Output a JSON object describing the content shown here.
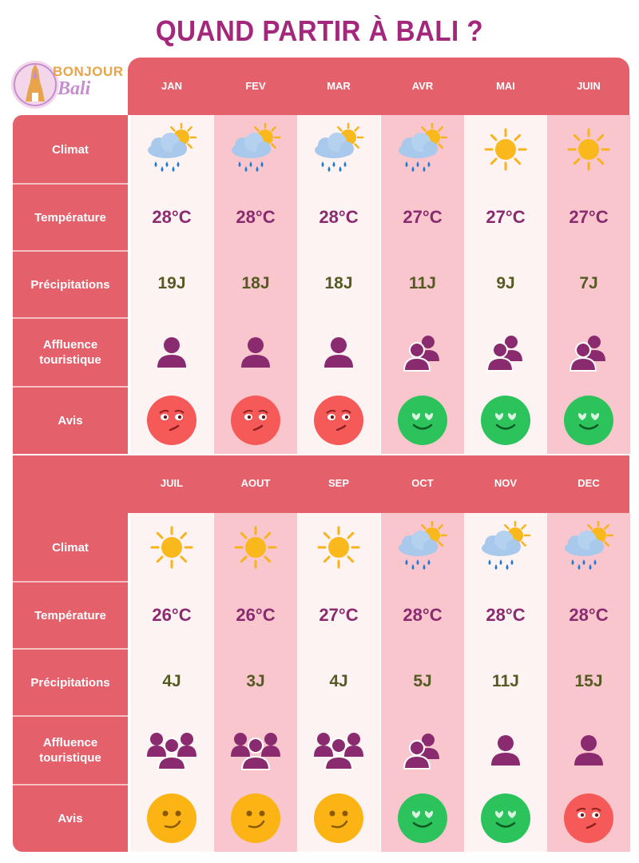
{
  "title": "QUAND PARTIR À BALI ?",
  "logo": {
    "line1": "BONJOUR",
    "line2": "Bali"
  },
  "row_labels": {
    "climat": "Climat",
    "temperature": "Température",
    "precipitations": "Précipitations",
    "affluence": "Affluence touristique",
    "avis": "Avis"
  },
  "colors": {
    "accent": "#e4606b",
    "light_col": "#fdf3f3",
    "pink_col": "#f8c6cc",
    "title": "#a3287c"
  },
  "sections": [
    {
      "months": [
        {
          "name": "JAN",
          "climat": "rain-sun-icon",
          "temp": "28°C",
          "rain": "19J",
          "affluence": "single-person-icon",
          "avis": "unhappy-face-icon"
        },
        {
          "name": "FEV",
          "climat": "rain-sun-icon",
          "temp": "28°C",
          "rain": "18J",
          "affluence": "single-person-icon",
          "avis": "unhappy-face-icon"
        },
        {
          "name": "MAR",
          "climat": "rain-sun-icon",
          "temp": "28°C",
          "rain": "18J",
          "affluence": "single-person-icon",
          "avis": "unhappy-face-icon"
        },
        {
          "name": "AVR",
          "climat": "rain-sun-icon",
          "temp": "27°C",
          "rain": "11J",
          "affluence": "two-people-icon",
          "avis": "love-face-icon"
        },
        {
          "name": "MAI",
          "climat": "sun-icon",
          "temp": "27°C",
          "rain": "9J",
          "affluence": "two-people-icon",
          "avis": "love-face-icon"
        },
        {
          "name": "JUIN",
          "climat": "sun-icon",
          "temp": "27°C",
          "rain": "7J",
          "affluence": "two-people-icon",
          "avis": "love-face-icon"
        }
      ]
    },
    {
      "months": [
        {
          "name": "JUIL",
          "climat": "sun-icon",
          "temp": "26°C",
          "rain": "4J",
          "affluence": "crowd-icon",
          "avis": "smirk-face-icon"
        },
        {
          "name": "AOUT",
          "climat": "sun-icon",
          "temp": "26°C",
          "rain": "3J",
          "affluence": "crowd-icon",
          "avis": "smirk-face-icon"
        },
        {
          "name": "SEP",
          "climat": "sun-icon",
          "temp": "27°C",
          "rain": "4J",
          "affluence": "crowd-icon",
          "avis": "smirk-face-icon"
        },
        {
          "name": "OCT",
          "climat": "rain-sun-icon",
          "temp": "28°C",
          "rain": "5J",
          "affluence": "two-people-icon",
          "avis": "love-face-icon"
        },
        {
          "name": "NOV",
          "climat": "rain-sun-icon",
          "temp": "28°C",
          "rain": "11J",
          "affluence": "single-person-icon",
          "avis": "love-face-icon"
        },
        {
          "name": "DEC",
          "climat": "rain-sun-icon",
          "temp": "28°C",
          "rain": "15J",
          "affluence": "single-person-icon",
          "avis": "unhappy-face-icon"
        }
      ]
    }
  ]
}
